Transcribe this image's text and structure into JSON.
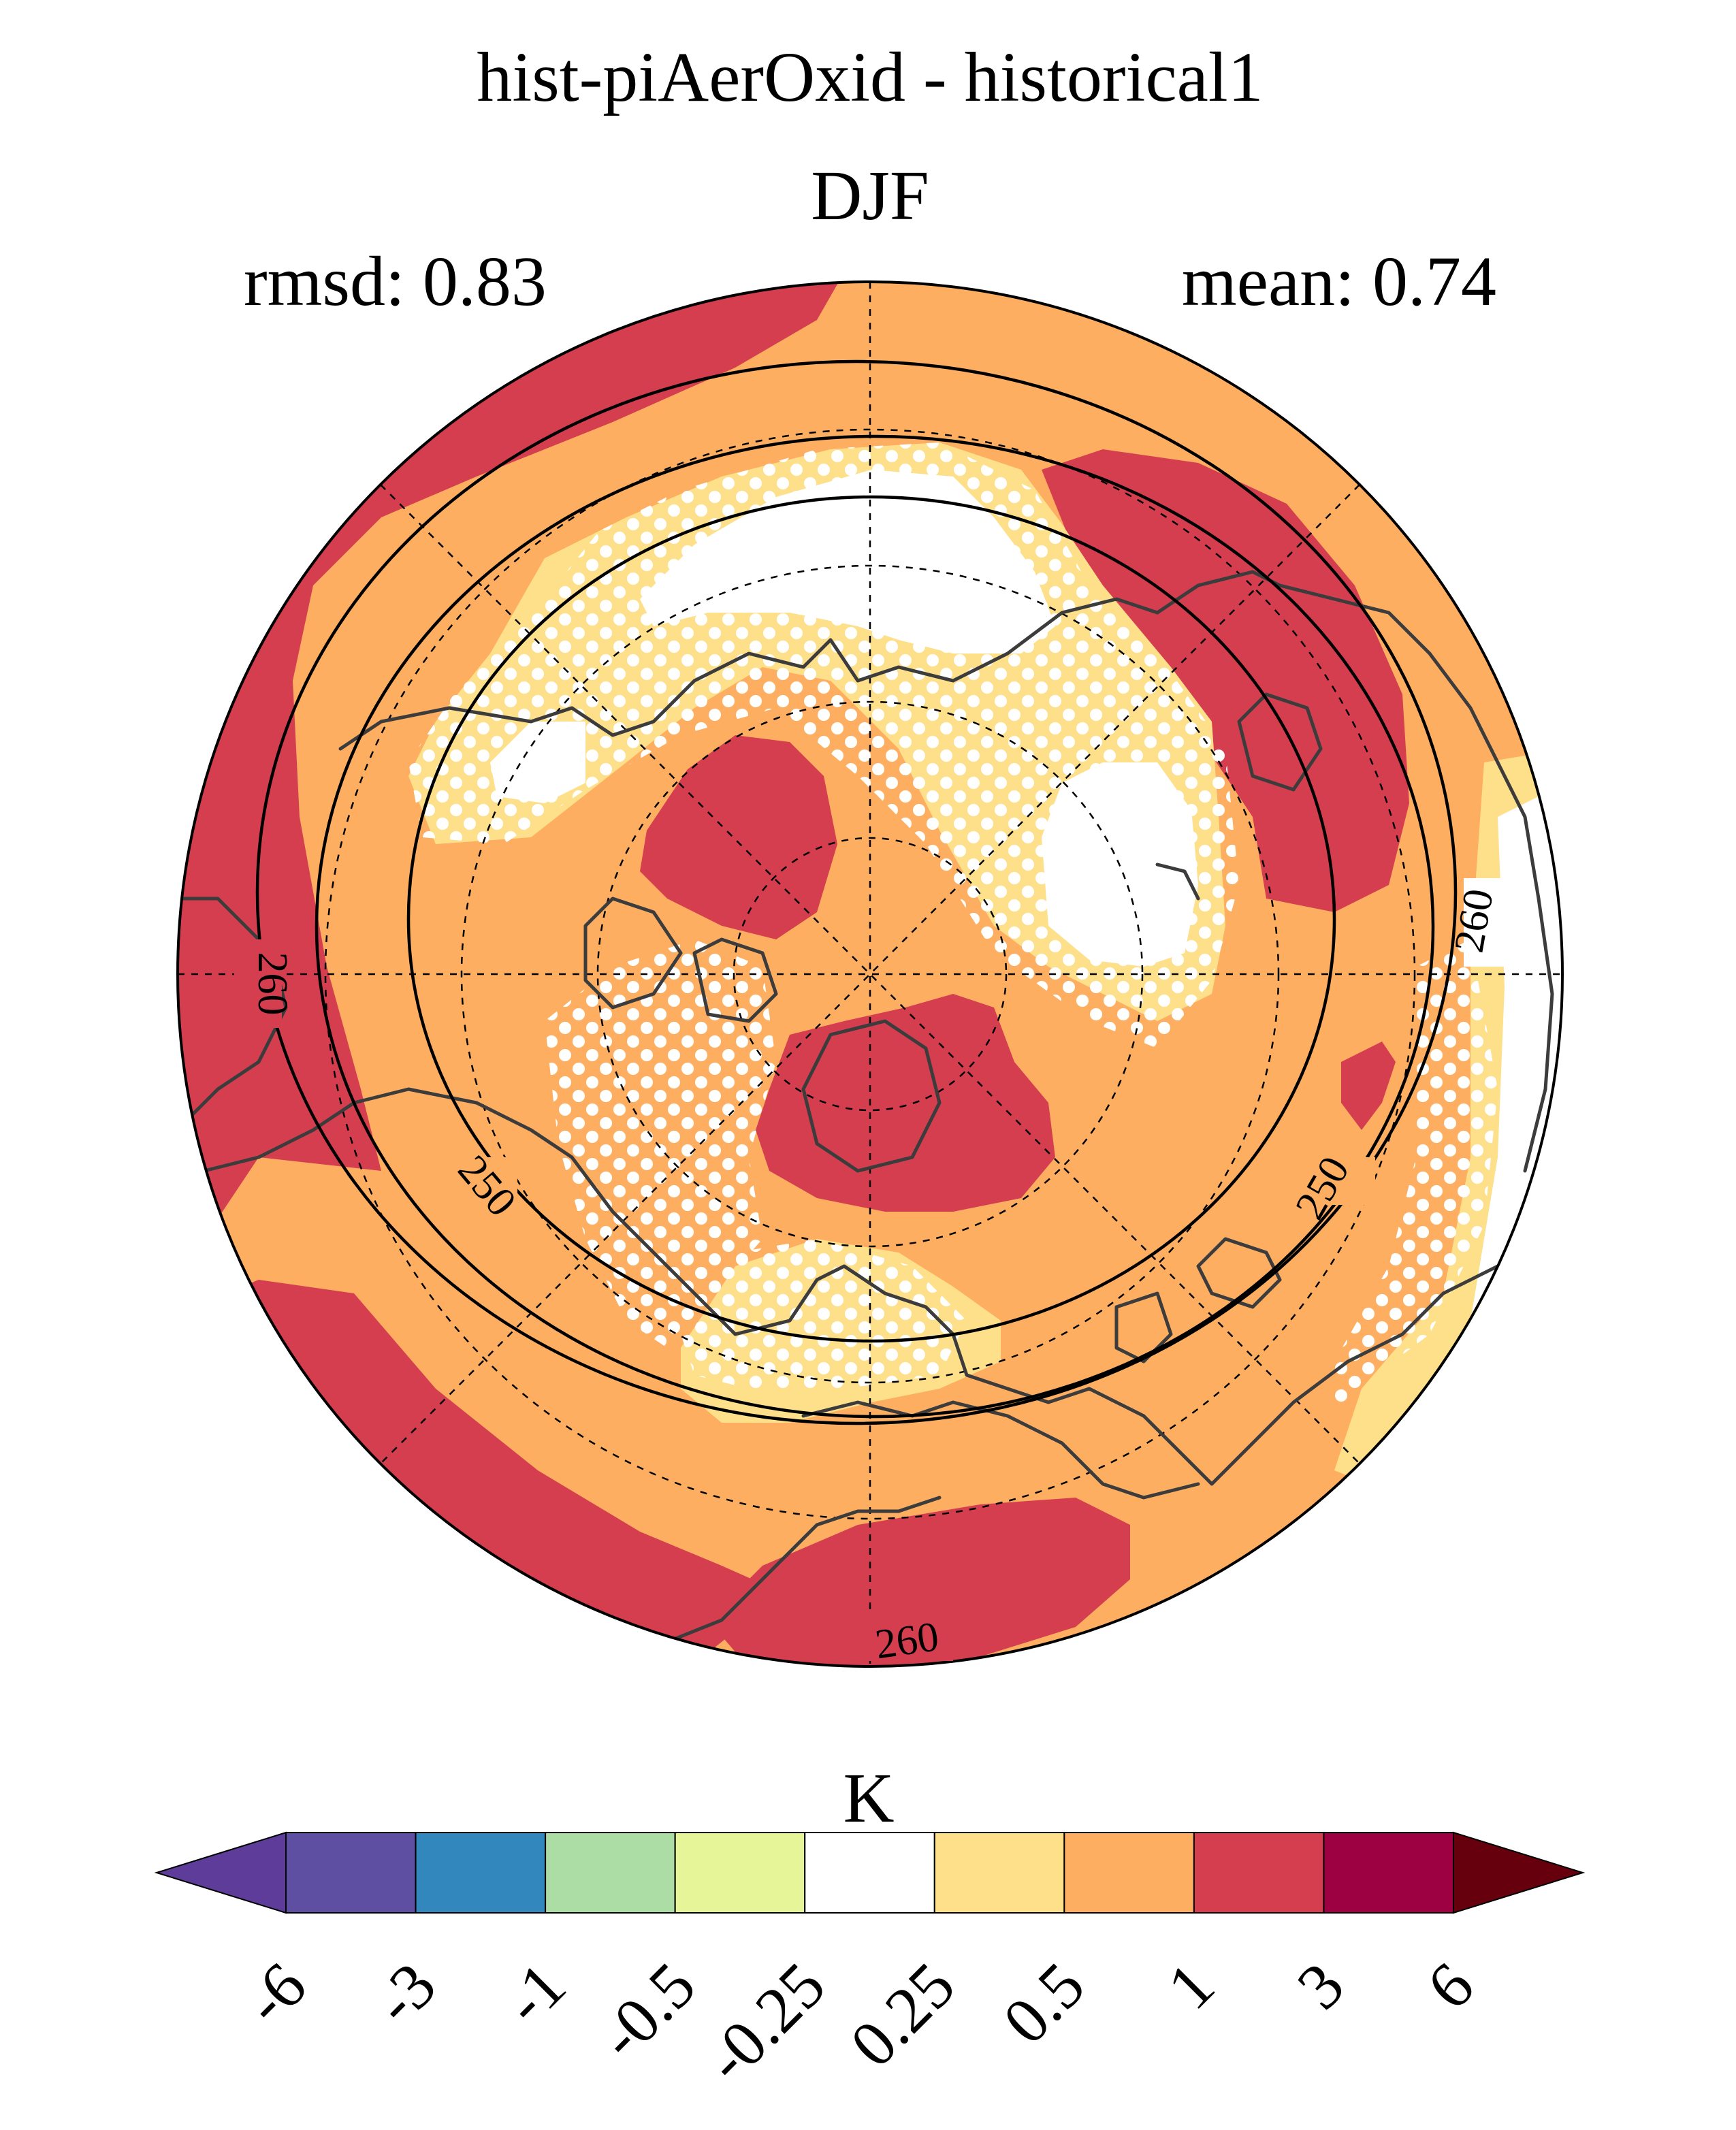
{
  "title": "hist-piAerOxid - historical1",
  "season": "DJF",
  "rmsd_text": "rmsd: 0.83",
  "mean_text": "mean: 0.74",
  "map": {
    "projection": "north-polar-stereographic",
    "field": "temperature difference",
    "stippling": "white dots",
    "contour_labels": [
      "260",
      "260",
      "250",
      "250",
      "260"
    ]
  },
  "colorbar": {
    "unit": "K",
    "extend": "both",
    "tick_labels": [
      "-6",
      "-3",
      "-1",
      "-0.5",
      "-0.25",
      "0.25",
      "0.5",
      "1",
      "3",
      "6"
    ],
    "colors": [
      "#5e3c99",
      "#5e4fa2",
      "#3288bd",
      "#abdda4",
      "#e6f598",
      "#ffffff",
      "#fee08b",
      "#fdae61",
      "#d53e4f",
      "#9e0142",
      "#67000d"
    ]
  },
  "colors": {
    "land_outline": "#3c3c3c",
    "stipple": "#ffffff"
  }
}
